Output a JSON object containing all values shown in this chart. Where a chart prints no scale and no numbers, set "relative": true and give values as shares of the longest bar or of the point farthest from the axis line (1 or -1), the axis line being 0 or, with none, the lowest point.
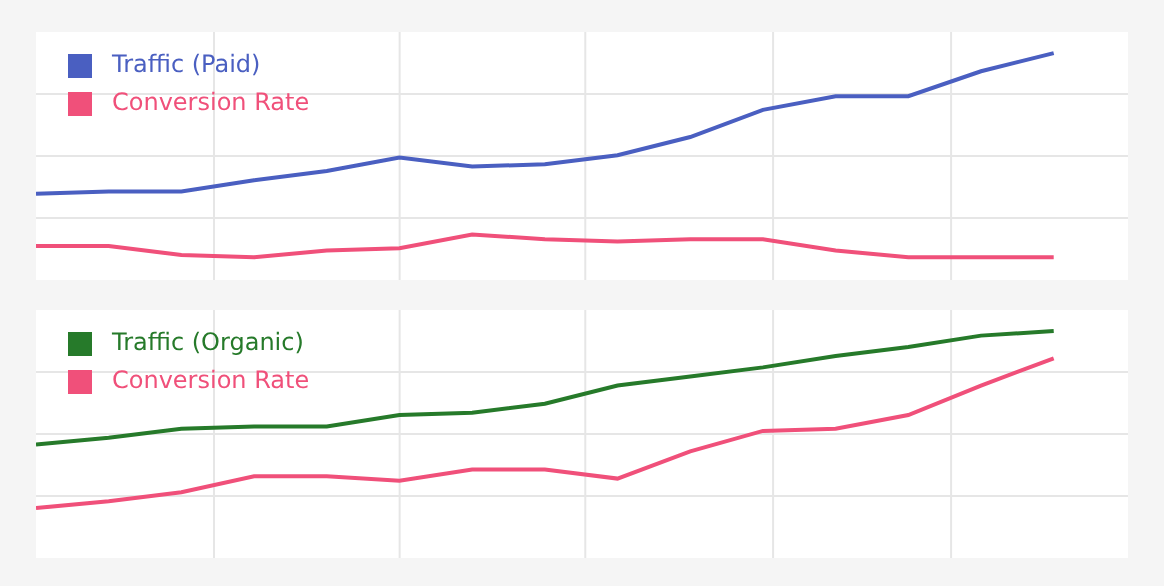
{
  "chart_data": [
    {
      "type": "line",
      "relative": true,
      "categories": [
        null,
        null,
        null,
        null,
        null,
        null,
        null,
        null,
        null,
        null,
        null,
        null,
        null,
        null,
        null
      ],
      "grid": true,
      "legend": "top left",
      "line_style": "solid",
      "series": [
        {
          "name": "Traffic (Paid)",
          "color": "#4a5fc1",
          "values": [
            0.38,
            0.39,
            0.39,
            0.44,
            0.48,
            0.54,
            0.5,
            0.51,
            0.55,
            0.63,
            0.75,
            0.81,
            0.81,
            0.92,
            1
          ]
        },
        {
          "name": "Conversion Rate",
          "color": "#f0507a",
          "values": [
            0.15,
            0.15,
            0.11,
            0.1,
            0.13,
            0.14,
            0.2,
            0.18,
            0.17,
            0.18,
            0.18,
            0.13,
            0.1,
            0.1,
            0.1
          ]
        }
      ]
    },
    {
      "type": "line",
      "relative": true,
      "categories": [
        null,
        null,
        null,
        null,
        null,
        null,
        null,
        null,
        null,
        null,
        null,
        null,
        null,
        null,
        null
      ],
      "grid": true,
      "legend": "top left",
      "line_style": "solid",
      "series": [
        {
          "name": "Traffic (Organic)",
          "color": "#267a2a",
          "values": [
            0.5,
            0.53,
            0.57,
            0.58,
            0.58,
            0.63,
            0.64,
            0.68,
            0.76,
            0.8,
            0.84,
            0.89,
            0.93,
            0.98,
            1
          ]
        },
        {
          "name": "Conversion Rate",
          "color": "#f0507a",
          "values": [
            0.22,
            0.25,
            0.29,
            0.36,
            0.36,
            0.34,
            0.39,
            0.39,
            0.35,
            0.47,
            0.56,
            0.57,
            0.63,
            0.76,
            0.88
          ]
        }
      ]
    }
  ]
}
